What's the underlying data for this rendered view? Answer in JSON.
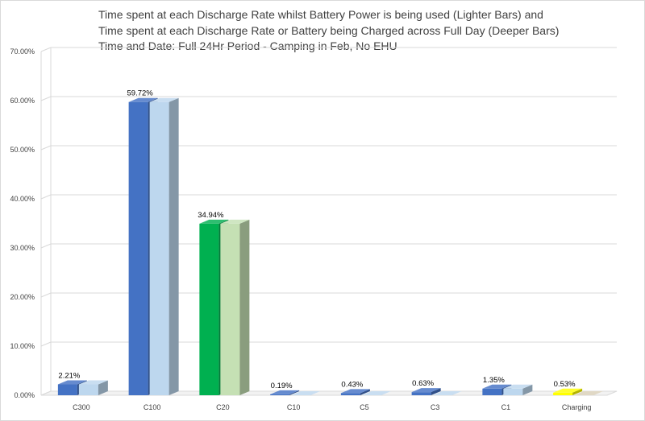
{
  "chart_data": {
    "type": "bar",
    "title_lines": [
      "Time spent at each Discharge Rate whilst Battery Power is being used (Lighter Bars) and",
      "Time spent at each Discharge Rate or Battery being  Charged across Full Day (Deeper Bars)",
      "Time and Date: Full 24Hr Period - Camping in Feb, No EHU"
    ],
    "categories": [
      "C300",
      "C100",
      "C20",
      "C10",
      "C5",
      "C3",
      "C1",
      "Charging"
    ],
    "yticks": [
      "0.00%",
      "10.00%",
      "20.00%",
      "30.00%",
      "40.00%",
      "50.00%",
      "60.00%",
      "70.00%"
    ],
    "ylim": [
      0,
      70
    ],
    "grid": true,
    "three_d": true,
    "legend": "none",
    "data_labels": [
      "2.21%",
      "59.72%",
      "34.94%",
      "0.19%",
      "0.43%",
      "0.63%",
      "1.35%",
      "0.53%"
    ],
    "series": [
      {
        "values": [
          2.21,
          59.72,
          34.94,
          0.19,
          0.43,
          0.63,
          1.35,
          0.53
        ],
        "colors": [
          "#4472c4",
          "#4472c4",
          "#00b050",
          "#4472c4",
          "#4472c4",
          "#4472c4",
          "#4472c4",
          "#ffff00"
        ]
      },
      {
        "values": [
          2.21,
          59.72,
          34.94,
          0.0,
          0.0,
          0.0,
          1.35,
          0.0
        ],
        "colors": [
          "#bdd7ee",
          "#bdd7ee",
          "#c5e0b4",
          "#bdd7ee",
          "#bdd7ee",
          "#bdd7ee",
          "#bdd7ee",
          "#d9d0b8"
        ]
      }
    ]
  }
}
